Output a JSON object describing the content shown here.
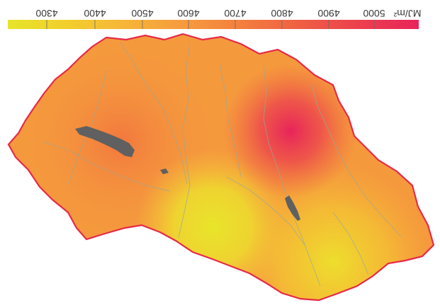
{
  "legend": {
    "ticks": [
      "4300",
      "4400",
      "4500",
      "4600",
      "4700",
      "4800",
      "4900",
      "5000"
    ],
    "unit": "MJ/m²",
    "orientation": "rotated-180",
    "colors": [
      "#e6e42a",
      "#f2cf2c",
      "#f6b638",
      "#f69a3e",
      "#f37e3e",
      "#ef5f43",
      "#ec3f4e",
      "#e8245a"
    ]
  },
  "map": {
    "border_color": "#e62a48",
    "river_color": "#9aa79a",
    "lake_color": "#606060",
    "orientation": "rotated-180"
  }
}
